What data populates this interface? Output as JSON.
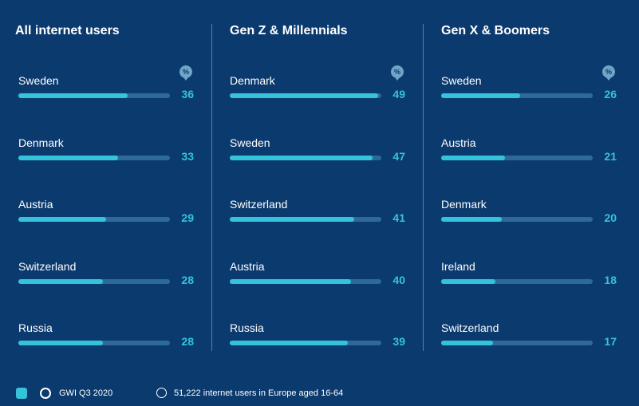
{
  "chart_data": [
    {
      "type": "bar",
      "title": "All internet users",
      "unit": "%",
      "categories": [
        "Sweden",
        "Denmark",
        "Austria",
        "Switzerland",
        "Russia"
      ],
      "values": [
        36,
        33,
        29,
        28,
        28
      ],
      "xlim": [
        0,
        50
      ]
    },
    {
      "type": "bar",
      "title": "Gen Z & Millennials",
      "unit": "%",
      "categories": [
        "Denmark",
        "Sweden",
        "Switzerland",
        "Austria",
        "Russia"
      ],
      "values": [
        49,
        47,
        41,
        40,
        39
      ],
      "xlim": [
        0,
        50
      ]
    },
    {
      "type": "bar",
      "title": "Gen X & Boomers",
      "unit": "%",
      "categories": [
        "Sweden",
        "Austria",
        "Denmark",
        "Ireland",
        "Switzerland"
      ],
      "values": [
        26,
        21,
        20,
        18,
        17
      ],
      "xlim": [
        0,
        50
      ]
    }
  ],
  "unit_icon": "percent-icon",
  "footer": {
    "source": "GWI Q3 2020",
    "sample": "51,222 internet users in Europe aged 16-64"
  },
  "colors": {
    "background": "#0b3a6e",
    "bar": "#35c3dc",
    "track": "#2d6a9a",
    "value": "#35c3dc"
  }
}
